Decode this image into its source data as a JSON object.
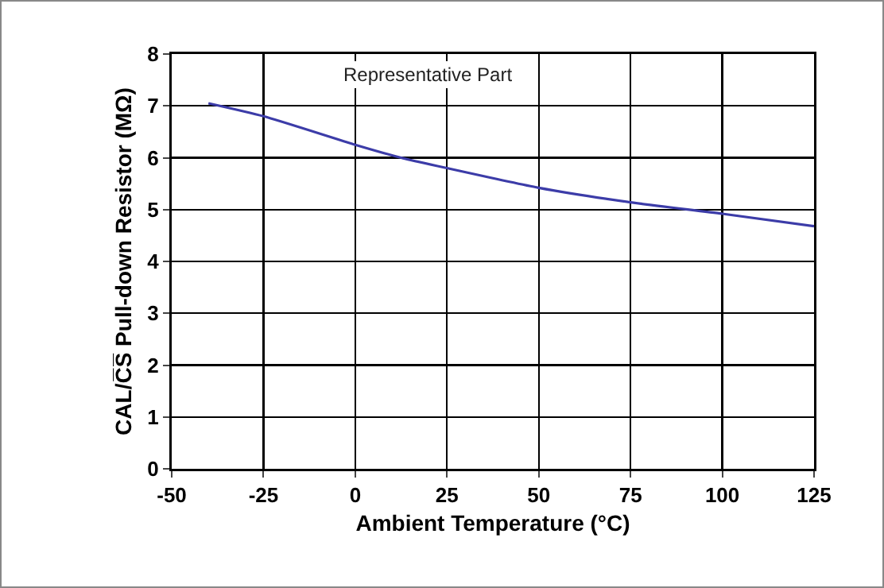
{
  "chart_data": {
    "type": "line",
    "xlabel": "Ambient Temperature (°C)",
    "ylabel": "CAL/C̅S̅ Pull-down Resistor (MΩ)",
    "annotations": [
      "Representative Part"
    ],
    "x": [
      -40,
      -25,
      0,
      12.5,
      25,
      50,
      75,
      100,
      125
    ],
    "series": [
      {
        "color": "#3c3ca8",
        "values": [
          7.05,
          6.8,
          6.25,
          6.0,
          5.8,
          5.42,
          5.14,
          4.92,
          4.68
        ]
      }
    ],
    "xlim": [
      -50,
      125
    ],
    "xticks": [
      -50,
      -25,
      0,
      25,
      50,
      75,
      100,
      125
    ],
    "ylim": [
      0,
      8
    ],
    "yticks": [
      0,
      1,
      2,
      3,
      4,
      5,
      6,
      7,
      8
    ],
    "grid": true,
    "marker": "none",
    "line_style": "solid"
  }
}
